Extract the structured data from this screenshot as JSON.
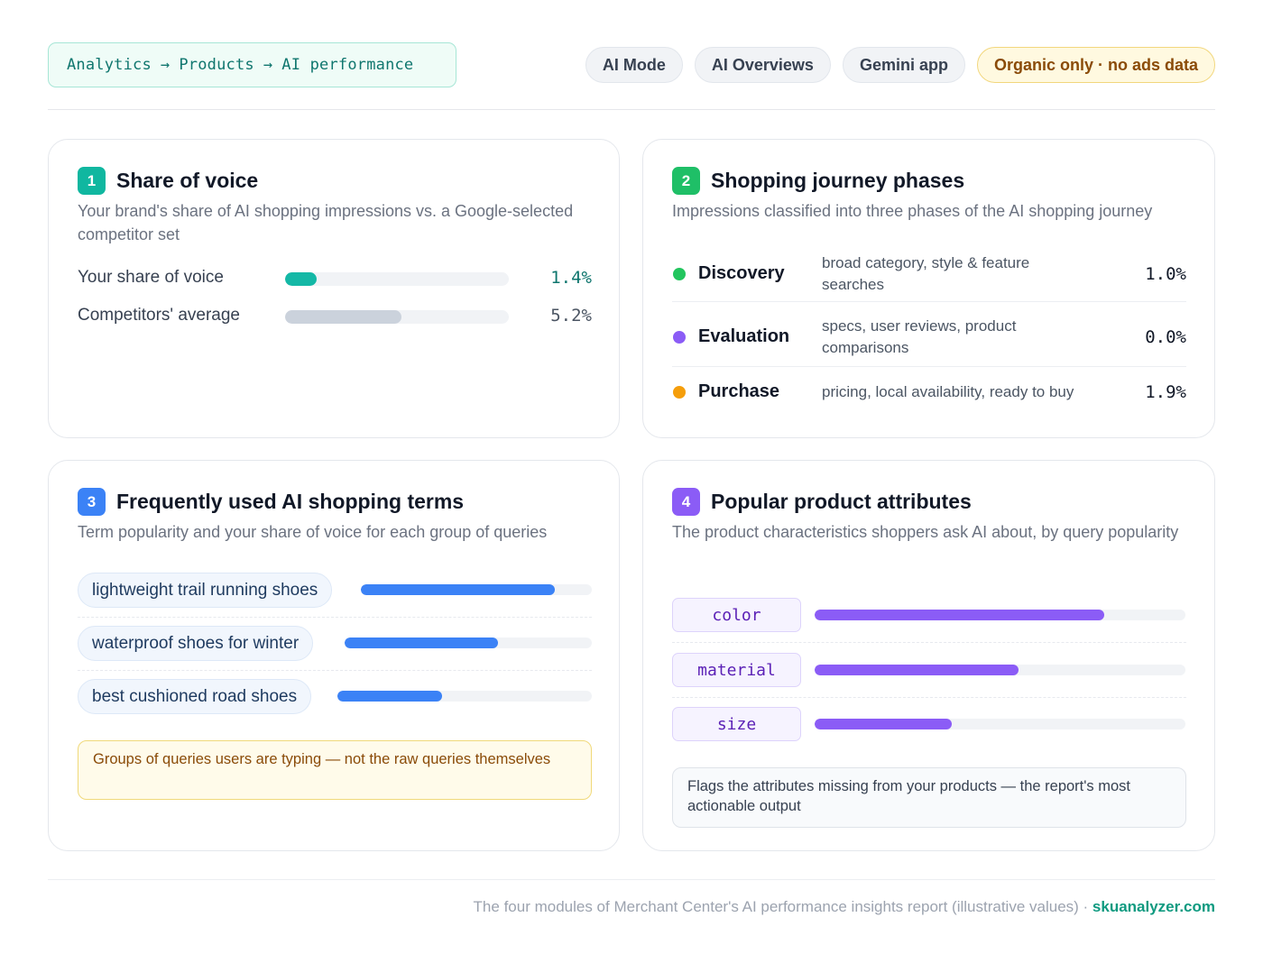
{
  "header": {
    "breadcrumb": [
      "Analytics",
      "Products",
      "AI performance"
    ],
    "breadcrumb_sep": "→",
    "chips": [
      "AI Mode",
      "AI Overviews",
      "Gemini app"
    ],
    "warning_chip": "Organic only · no ads data"
  },
  "share_of_voice": {
    "num": "1",
    "title": "Share of voice",
    "subtitle": "Your brand's share of AI shopping impressions vs. a Google-selected competitor set",
    "rows": [
      {
        "label": "Your share of voice",
        "value": "1.4%",
        "fill": 0.14,
        "color": "#14b8a6"
      },
      {
        "label": "Competitors' average",
        "value": "5.2%",
        "fill": 0.52,
        "color": "#cbd2dc"
      }
    ]
  },
  "journey": {
    "num": "2",
    "title": "Shopping journey phases",
    "subtitle": "Impressions classified into three phases of the AI shopping journey",
    "phases": [
      {
        "name": "Discovery",
        "desc": "broad category, style & feature searches",
        "value": "1.0%",
        "color": "#22c55e"
      },
      {
        "name": "Evaluation",
        "desc": "specs, user reviews, product comparisons",
        "value": "0.0%",
        "color": "#8b5cf6"
      },
      {
        "name": "Purchase",
        "desc": "pricing, local availability, ready to buy",
        "value": "1.9%",
        "color": "#f59e0b"
      }
    ]
  },
  "terms": {
    "num": "3",
    "title": "Frequently used AI shopping terms",
    "subtitle": "Term popularity and your share of voice for each group of queries",
    "items": [
      {
        "label": "lightweight trail running shoes",
        "fill": 0.84
      },
      {
        "label": "waterproof shoes for winter",
        "fill": 0.62
      },
      {
        "label": "best cushioned road shoes",
        "fill": 0.41
      }
    ],
    "note": "Groups of queries users are typing — not the raw queries themselves"
  },
  "attributes": {
    "num": "4",
    "title": "Popular product attributes",
    "subtitle": "The product characteristics shoppers ask AI about, by query popularity",
    "items": [
      {
        "label": "color",
        "fill": 0.78
      },
      {
        "label": "material",
        "fill": 0.55
      },
      {
        "label": "size",
        "fill": 0.37
      }
    ],
    "note": "Flags the attributes missing from your products — the report's most actionable output"
  },
  "footer": {
    "text": "The four modules of Merchant Center's AI performance insights report (illustrative values) · ",
    "brand": "skuanalyzer.com"
  }
}
